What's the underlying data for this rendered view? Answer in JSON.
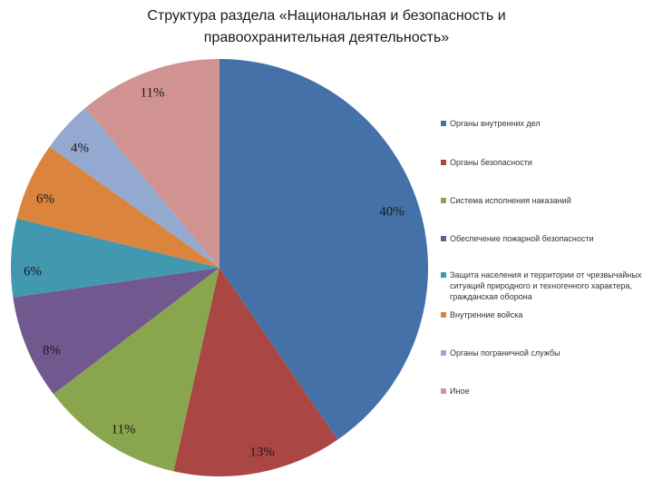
{
  "chart_data": {
    "type": "pie",
    "title_lines": [
      "Структура раздела «Национальная и безопасность и",
      "правоохранительная деятельность»"
    ],
    "categories": [
      "Органы внутренних дел",
      "Органы безопасности",
      "Система исполнения наказаний",
      "Обеспечение пожарной безопасности",
      "Защита населения и территории от чрезвычайных ситуаций природного и техногенного характера, гражданская оборона",
      "Внутренние войска",
      "Органы пограничной службы",
      "Иное"
    ],
    "values": [
      40,
      13,
      11,
      8,
      6,
      6,
      4,
      11
    ],
    "data_labels": [
      "40%",
      "13%",
      "11%",
      "8%",
      "6%",
      "6%",
      "4%",
      "11%"
    ],
    "colors": [
      "#4472A8",
      "#AA4643",
      "#89A54E",
      "#71588F",
      "#4198AF",
      "#DB843D",
      "#93A9CF",
      "#D19392"
    ],
    "legend_position": "right",
    "start": "12 o'clock, clockwise"
  }
}
